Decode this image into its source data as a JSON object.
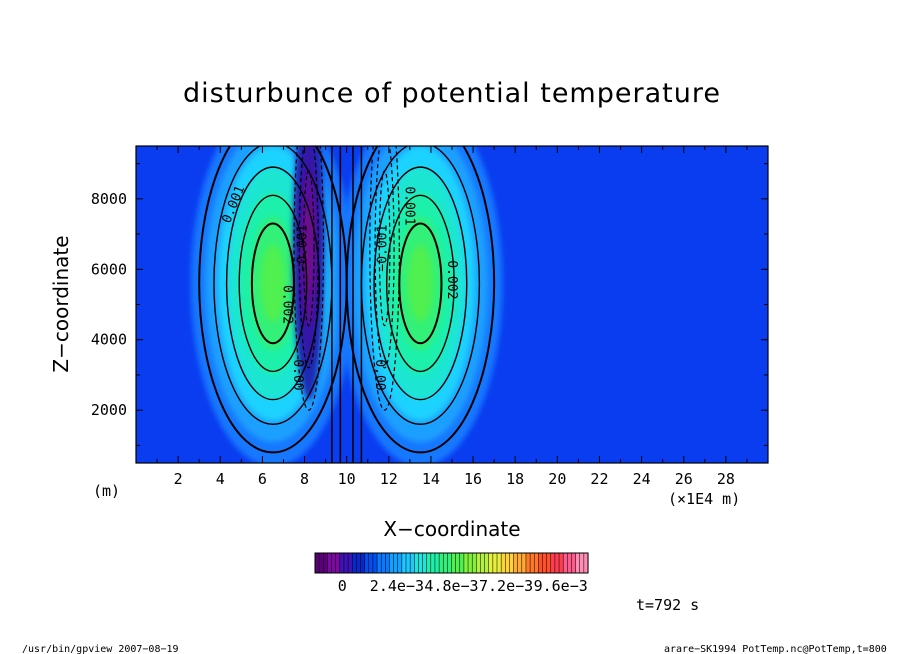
{
  "chart_data": {
    "type": "heatmap",
    "title": "disturbunce of potential temperature",
    "xlabel": "X−coordinate",
    "ylabel": "Z−coordinate",
    "x_unit_left": "(m)",
    "x_unit_right": "(×1E4 m)",
    "xlim": [
      0,
      30
    ],
    "ylim": [
      500,
      9500
    ],
    "x_ticks": [
      2,
      4,
      6,
      8,
      10,
      12,
      14,
      16,
      18,
      20,
      22,
      24,
      26,
      28
    ],
    "y_ticks": [
      2000,
      4000,
      6000,
      8000
    ],
    "colorbar": {
      "range": [
        -0.0012,
        0.0108
      ],
      "tick_labels": [
        "0",
        "2.4e−3",
        "4.8e−3",
        "7.2e−3",
        "9.6e−3"
      ],
      "colors": [
        "#5a0078",
        "#7a0aa0",
        "#3c14b4",
        "#0a28c8",
        "#0050f0",
        "#0a78ff",
        "#14a0ff",
        "#1ec8ff",
        "#1ee6dc",
        "#1ef0aa",
        "#32f078",
        "#50f050",
        "#82f03c",
        "#b4f03c",
        "#e6f03c",
        "#ffd23c",
        "#ffaa32",
        "#ff7828",
        "#ff5028",
        "#ff3c50",
        "#ff5a8c",
        "#ff8cb4"
      ]
    },
    "features": [
      {
        "kind": "positive-lobe",
        "x_center": 6.5,
        "z_center": 5600,
        "peak": 0.003
      },
      {
        "kind": "negative-lobe",
        "x_center": 8.2,
        "z_center": 6600,
        "peak": -0.0012
      },
      {
        "kind": "negative-lobe",
        "x_center": 11.8,
        "z_center": 6600,
        "peak": -0.0012
      },
      {
        "kind": "positive-lobe",
        "x_center": 13.5,
        "z_center": 5600,
        "peak": 0.003
      }
    ],
    "contour_labels": [
      {
        "text": "0.001",
        "x": 4.8,
        "z": 7800,
        "angle": -68
      },
      {
        "text": "0.002",
        "x": 7.0,
        "z": 5000,
        "angle": 90
      },
      {
        "text": "0.00",
        "x": 7.5,
        "z": 3000,
        "angle": 90
      },
      {
        "text": "−0.001",
        "x": 8.1,
        "z": 6600,
        "angle": -90
      },
      {
        "text": "0.001",
        "x": 12.8,
        "z": 7800,
        "angle": 90
      },
      {
        "text": "−0.001",
        "x": 11.9,
        "z": 6600,
        "angle": -90
      },
      {
        "text": "0.002",
        "x": 14.8,
        "z": 5700,
        "angle": 90
      },
      {
        "text": "0.00",
        "x": 11.4,
        "z": 3000,
        "angle": 90
      }
    ],
    "time_label": "t=792 s"
  },
  "footer": {
    "left": "/usr/bin/gpview   2007−08−19",
    "right": "arare−SK1994_PotTemp.nc@PotTemp,t=800"
  }
}
